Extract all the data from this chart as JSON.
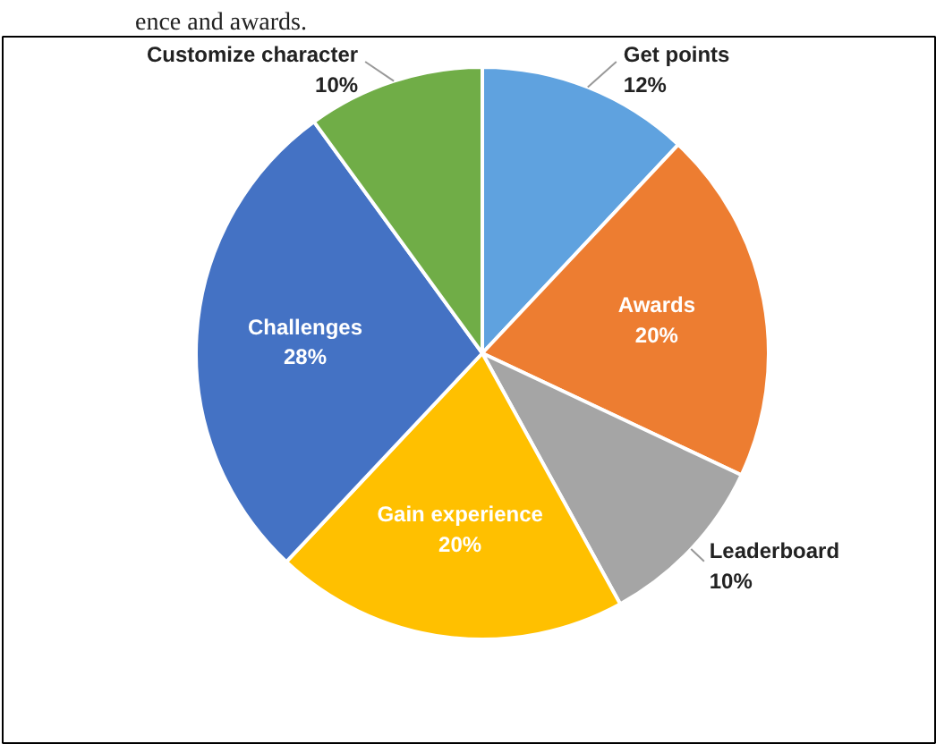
{
  "chart_data": {
    "type": "pie",
    "categories": [
      "Get points",
      "Awards",
      "Leaderboard",
      "Gain experience",
      "Challenges",
      "Customize character"
    ],
    "values": [
      12,
      20,
      10,
      20,
      28,
      10
    ],
    "value_labels": [
      "12%",
      "20%",
      "10%",
      "20%",
      "28%",
      "10%"
    ],
    "colors": [
      "#5fa2df",
      "#ed7d31",
      "#a5a5a5",
      "#ffc000",
      "#4472c4",
      "#70ad47"
    ],
    "annotations": [
      "ence and awards."
    ]
  }
}
